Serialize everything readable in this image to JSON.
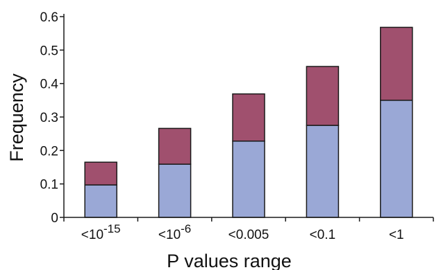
{
  "chart_data": {
    "type": "bar",
    "stacked": true,
    "categories": [
      {
        "base": "<10",
        "sup": "-15"
      },
      {
        "base": "<10",
        "sup": "-6"
      },
      {
        "base": "<0.005",
        "sup": ""
      },
      {
        "base": "<0.1",
        "sup": ""
      },
      {
        "base": "<1",
        "sup": ""
      }
    ],
    "series": [
      {
        "values": [
          0.097,
          0.159,
          0.228,
          0.275,
          0.35
        ],
        "color": "#9aa8d6"
      },
      {
        "values": [
          0.068,
          0.107,
          0.141,
          0.176,
          0.218
        ],
        "color": "#a0506e"
      }
    ],
    "xlabel": "P values range",
    "ylabel": "Frequency",
    "ylim": [
      0,
      0.6
    ],
    "yticks": [
      "0",
      "0.1",
      "0.2",
      "0.3",
      "0.4",
      "0.5",
      "0.6"
    ],
    "grid": false,
    "legend": "none"
  }
}
